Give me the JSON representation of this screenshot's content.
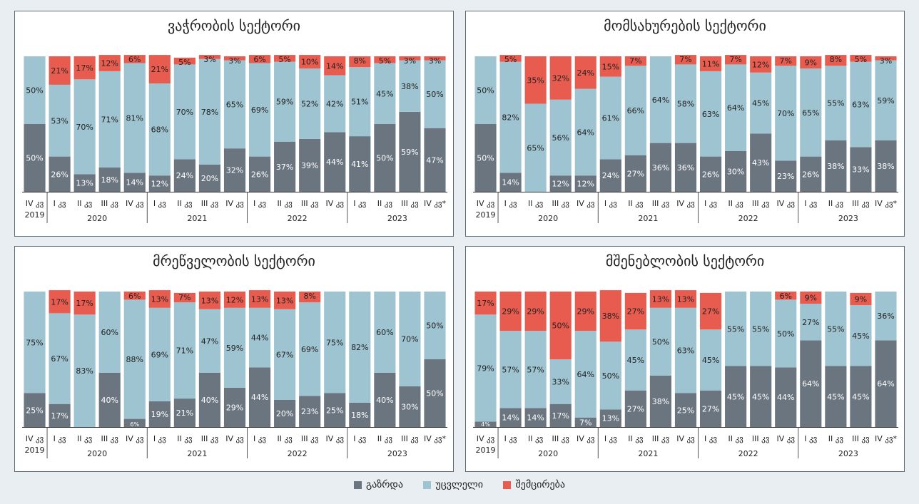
{
  "colors": {
    "increase": "#6b7580",
    "unchanged": "#9fc4d1",
    "decrease": "#e85c50"
  },
  "legend": {
    "increase": "გაზრდა",
    "unchanged": "უცვლელი",
    "decrease": "შემცირება"
  },
  "chart_data": [
    {
      "type": "bar",
      "stacked": true,
      "title": "ვაჭრობის სექტორი",
      "quarters": [
        "IV კვ",
        "I კვ",
        "II კვ",
        "III კვ",
        "IV კვ",
        "I კვ",
        "II კვ",
        "III კვ",
        "IV კვ",
        "I კვ",
        "II კვ",
        "III კვ",
        "IV კვ",
        "I კვ",
        "II კვ",
        "III კვ",
        "IV კვ*"
      ],
      "years": [
        {
          "label": "2019",
          "start": 0,
          "end": 0
        },
        {
          "label": "2020",
          "start": 1,
          "end": 4
        },
        {
          "label": "2021",
          "start": 5,
          "end": 8
        },
        {
          "label": "2022",
          "start": 9,
          "end": 12
        },
        {
          "label": "2023",
          "start": 13,
          "end": 16
        }
      ],
      "series": [
        {
          "name": "გაზრდა",
          "key": "increase",
          "values": [
            50,
            26,
            13,
            18,
            14,
            12,
            24,
            20,
            32,
            26,
            37,
            39,
            44,
            41,
            50,
            59,
            47
          ]
        },
        {
          "name": "უცვლელი",
          "key": "unchanged",
          "values": [
            50,
            53,
            70,
            71,
            81,
            68,
            70,
            78,
            65,
            69,
            59,
            52,
            42,
            51,
            45,
            38,
            50
          ]
        },
        {
          "name": "შემცირება",
          "key": "decrease",
          "values": [
            0,
            21,
            17,
            12,
            6,
            21,
            5,
            3,
            3,
            6,
            5,
            10,
            14,
            8,
            5,
            3,
            3
          ]
        }
      ]
    },
    {
      "type": "bar",
      "stacked": true,
      "title": "მომსახურების სექტორი",
      "quarters": [
        "IV კვ",
        "I კვ",
        "II კვ",
        "III კვ",
        "IV კვ",
        "I კვ",
        "II კვ",
        "III კვ",
        "IV კვ",
        "I კვ",
        "II კვ",
        "III კვ",
        "IV კვ",
        "I კვ",
        "II კვ",
        "III კვ",
        "IV კვ*"
      ],
      "years": [
        {
          "label": "2019",
          "start": 0,
          "end": 0
        },
        {
          "label": "2020",
          "start": 1,
          "end": 4
        },
        {
          "label": "2021",
          "start": 5,
          "end": 8
        },
        {
          "label": "2022",
          "start": 9,
          "end": 12
        },
        {
          "label": "2023",
          "start": 13,
          "end": 16
        }
      ],
      "series": [
        {
          "name": "გაზრდა",
          "key": "increase",
          "values": [
            50,
            14,
            0,
            12,
            12,
            24,
            27,
            36,
            36,
            26,
            30,
            43,
            23,
            26,
            38,
            33,
            38
          ]
        },
        {
          "name": "უცვლელი",
          "key": "unchanged",
          "values": [
            50,
            82,
            65,
            56,
            64,
            61,
            66,
            64,
            58,
            63,
            64,
            45,
            70,
            65,
            55,
            63,
            59
          ]
        },
        {
          "name": "შემცირება",
          "key": "decrease",
          "values": [
            0,
            5,
            35,
            32,
            24,
            15,
            7,
            0,
            7,
            11,
            7,
            12,
            7,
            9,
            8,
            5,
            3
          ]
        }
      ]
    },
    {
      "type": "bar",
      "stacked": true,
      "title": "მრეწველობის სექტორი",
      "quarters": [
        "IV კვ",
        "I კვ",
        "II კვ",
        "III კვ",
        "IV კვ",
        "I კვ",
        "II კვ",
        "III კვ",
        "IV კვ",
        "I კვ",
        "II კვ",
        "III კვ",
        "IV კვ",
        "I კვ",
        "II კვ",
        "III კვ",
        "IV კვ*"
      ],
      "years": [
        {
          "label": "2019",
          "start": 0,
          "end": 0
        },
        {
          "label": "2020",
          "start": 1,
          "end": 4
        },
        {
          "label": "2021",
          "start": 5,
          "end": 8
        },
        {
          "label": "2022",
          "start": 9,
          "end": 12
        },
        {
          "label": "2023",
          "start": 13,
          "end": 16
        }
      ],
      "series": [
        {
          "name": "გაზრდა",
          "key": "increase",
          "values": [
            25,
            17,
            0,
            40,
            6,
            19,
            21,
            40,
            29,
            44,
            20,
            23,
            25,
            18,
            40,
            30,
            50
          ]
        },
        {
          "name": "უცვლელი",
          "key": "unchanged",
          "values": [
            75,
            67,
            83,
            60,
            88,
            69,
            71,
            47,
            59,
            44,
            67,
            69,
            75,
            82,
            60,
            70,
            50
          ]
        },
        {
          "name": "შემცირება",
          "key": "decrease",
          "values": [
            0,
            17,
            17,
            0,
            6,
            13,
            7,
            13,
            12,
            13,
            13,
            8,
            0,
            0,
            0,
            0,
            0
          ]
        }
      ]
    },
    {
      "type": "bar",
      "stacked": true,
      "title": "მშენებლობის სექტორი",
      "quarters": [
        "IV კვ",
        "I კვ",
        "II კვ",
        "III კვ",
        "IV კვ",
        "I კვ",
        "II კვ",
        "III კვ",
        "IV კვ",
        "I კვ",
        "II კვ",
        "III კვ",
        "IV კვ",
        "I კვ",
        "II კვ",
        "III კვ",
        "IV კვ*"
      ],
      "years": [
        {
          "label": "2019",
          "start": 0,
          "end": 0
        },
        {
          "label": "2020",
          "start": 1,
          "end": 4
        },
        {
          "label": "2021",
          "start": 5,
          "end": 8
        },
        {
          "label": "2022",
          "start": 9,
          "end": 12
        },
        {
          "label": "2023",
          "start": 13,
          "end": 16
        }
      ],
      "series": [
        {
          "name": "გაზრდა",
          "key": "increase",
          "values": [
            4,
            14,
            14,
            17,
            7,
            13,
            27,
            38,
            25,
            27,
            45,
            45,
            44,
            64,
            45,
            45,
            64
          ]
        },
        {
          "name": "უცვლელი",
          "key": "unchanged",
          "values": [
            79,
            57,
            57,
            33,
            64,
            50,
            45,
            50,
            63,
            45,
            55,
            55,
            50,
            27,
            55,
            45,
            36
          ]
        },
        {
          "name": "შემცირება",
          "key": "decrease",
          "values": [
            17,
            29,
            29,
            50,
            29,
            38,
            27,
            13,
            13,
            27,
            0,
            0,
            6,
            9,
            0,
            9,
            0
          ]
        }
      ]
    }
  ]
}
